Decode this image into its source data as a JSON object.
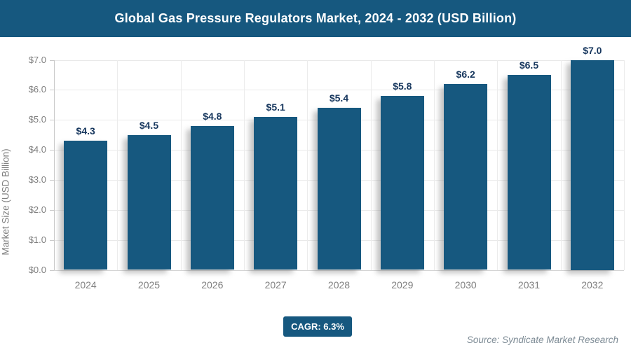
{
  "header": {
    "title": "Global Gas Pressure Regulators Market, 2024 - 2032 (USD Billion)"
  },
  "chart_data": {
    "type": "bar",
    "title": "Global Gas Pressure Regulators Market, 2024 - 2032 (USD Billion)",
    "categories": [
      "2024",
      "2025",
      "2026",
      "2027",
      "2028",
      "2029",
      "2030",
      "2031",
      "2032"
    ],
    "values": [
      4.3,
      4.5,
      4.8,
      5.1,
      5.4,
      5.8,
      6.2,
      6.5,
      7.0
    ],
    "bar_labels": [
      "$4.3",
      "$4.5",
      "$4.8",
      "$5.1",
      "$5.4",
      "$5.8",
      "$6.2",
      "$6.5",
      "$7.0"
    ],
    "xlabel": "",
    "ylabel": "Market Size (USD Billion)",
    "ylim": [
      0,
      7
    ],
    "ytick_step": 1,
    "ytick_labels": [
      "$0.0",
      "$1.0",
      "$2.0",
      "$3.0",
      "$4.0",
      "$5.0",
      "$6.0",
      "$7.0"
    ],
    "grid": true,
    "legend": "none",
    "bar_color": "#16587f",
    "value_label_color": "#17375e",
    "axis_text_color": "#7f7f7f"
  },
  "footer": {
    "cagr_label": "CAGR: 6.3%",
    "source": "Source: Syndicate Market Research"
  }
}
